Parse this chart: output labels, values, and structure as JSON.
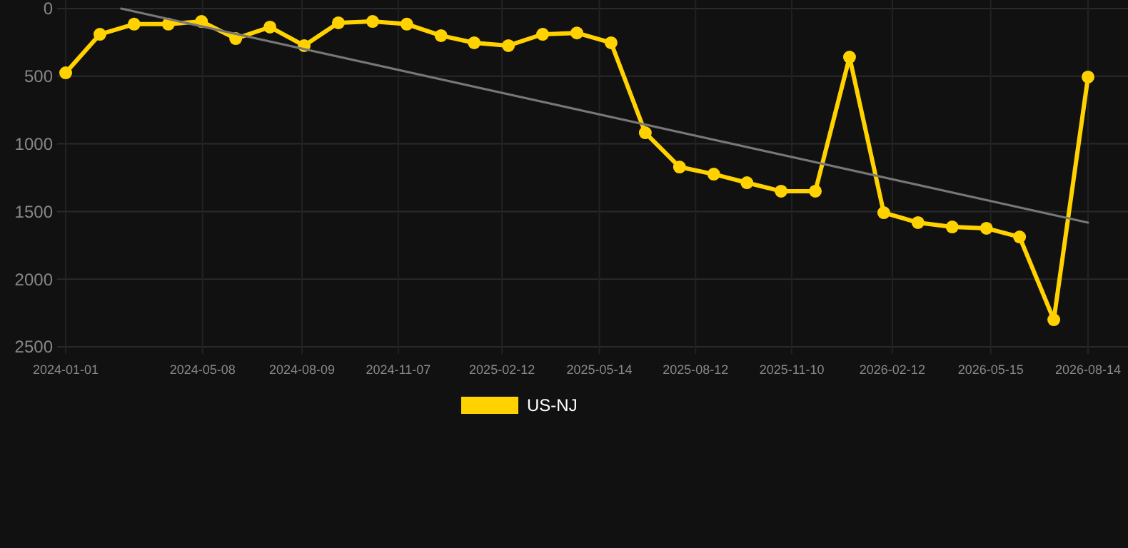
{
  "chart_data": {
    "type": "line",
    "x": [
      "2024-01-01",
      "2024-02-02",
      "2024-03-05",
      "2024-04-06",
      "2024-05-07",
      "2024-06-08",
      "2024-07-10",
      "2024-08-11",
      "2024-09-12",
      "2024-10-14",
      "2024-11-15",
      "2024-12-17",
      "2025-01-17",
      "2025-02-18",
      "2025-03-22",
      "2025-04-23",
      "2025-05-25",
      "2025-06-26",
      "2025-07-28",
      "2025-08-29",
      "2025-09-29",
      "2025-10-31",
      "2025-12-02",
      "2026-01-03",
      "2026-02-04",
      "2026-03-08",
      "2026-04-09",
      "2026-05-11",
      "2026-06-11",
      "2026-07-13",
      "2026-08-14"
    ],
    "series": [
      {
        "name": "US-NJ",
        "color": "#ffd200",
        "marker": "circle",
        "values": [
          475,
          190,
          115,
          115,
          95,
          222,
          137,
          274,
          105,
          95,
          115,
          200,
          253,
          274,
          190,
          180,
          253,
          918,
          1171,
          1224,
          1287,
          1350,
          1350,
          359,
          1509,
          1582,
          1614,
          1624,
          1688,
          2300,
          506
        ]
      },
      {
        "type": "line",
        "color": "#777777",
        "marker": "none",
        "x": [
          "2024-02-22",
          "2026-08-14"
        ],
        "values": [
          0,
          1582
        ]
      }
    ],
    "ylim": [
      2500,
      0
    ],
    "yticks": [
      0,
      500,
      1000,
      1500,
      2000,
      2500
    ],
    "xlim": [
      "2024-01-01",
      "2026-08-14"
    ],
    "xticks": [
      "2024-01-01",
      "2024-05-08",
      "2024-08-09",
      "2024-11-07",
      "2025-02-12",
      "2025-05-14",
      "2025-08-12",
      "2025-11-10",
      "2026-02-12",
      "2026-05-15",
      "2026-08-14"
    ],
    "grid": true,
    "legend": "bottom"
  }
}
